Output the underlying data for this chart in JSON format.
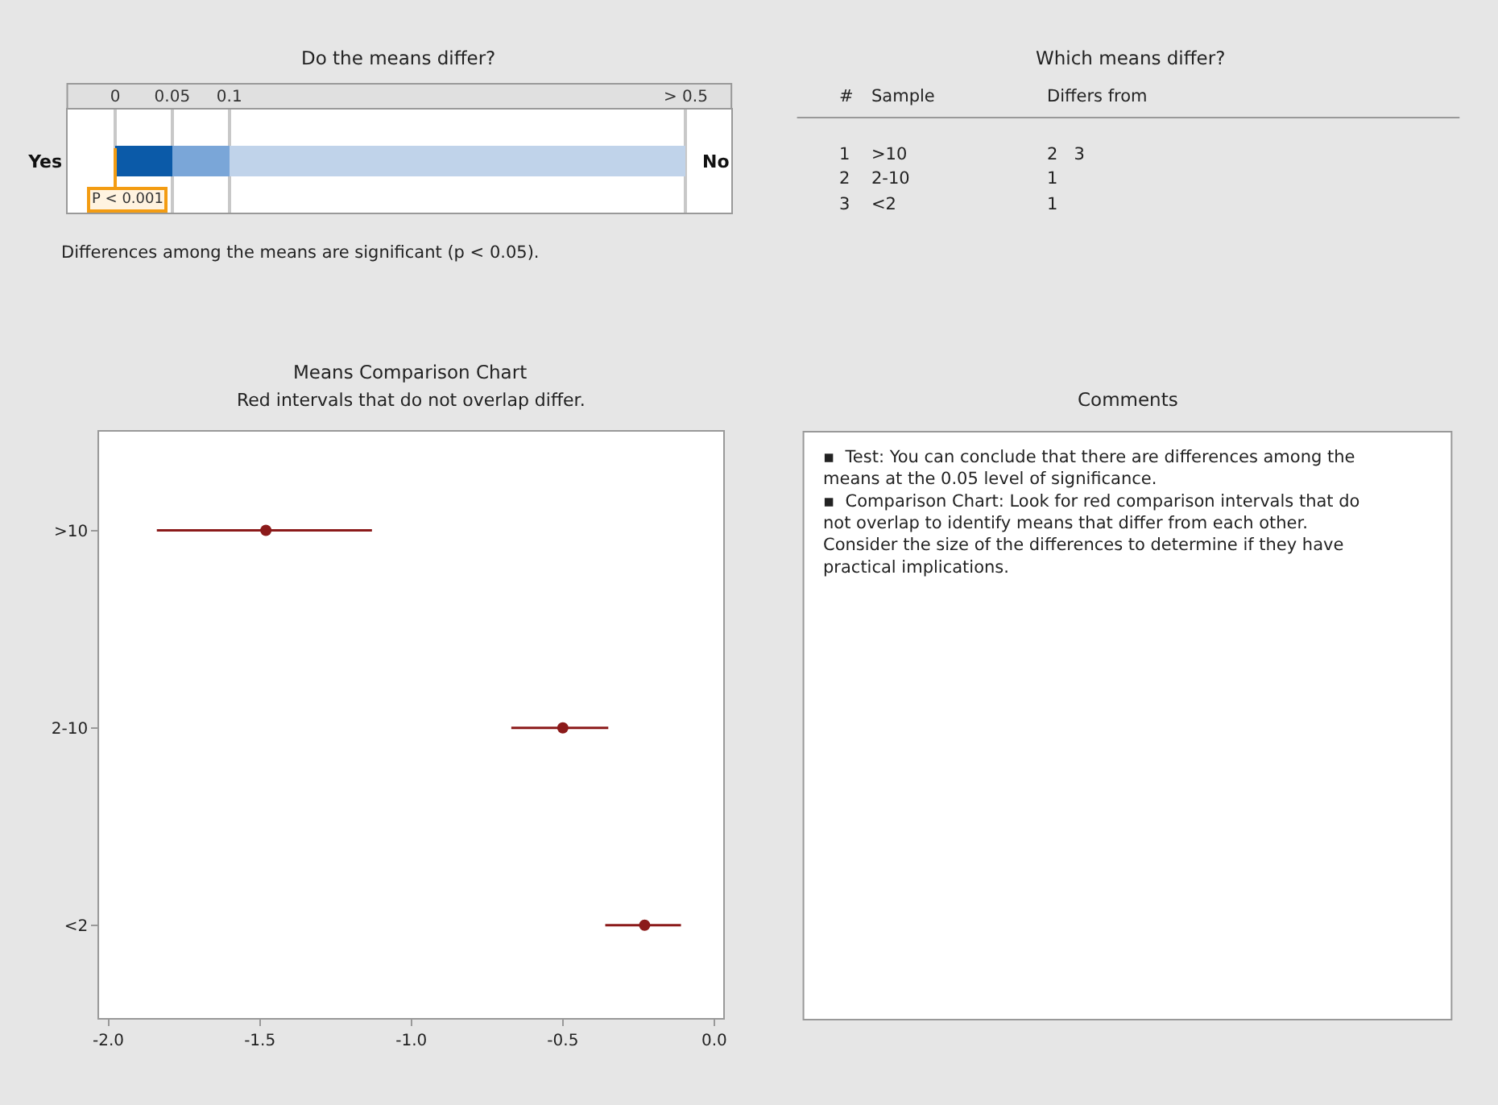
{
  "chart_data": [
    {
      "type": "bar",
      "title": "Do the means differ?",
      "orientation": "horizontal",
      "stacked": true,
      "categories": [
        "Yes"
      ],
      "series": [
        {
          "color": "#0b5aa8",
          "values": [
            0.05
          ]
        },
        {
          "color": "#7aa6d8",
          "values": [
            0.05
          ]
        },
        {
          "color": "#c0d3ea",
          "values": [
            0.4
          ]
        }
      ],
      "xlim": [
        -0.042,
        0.54
      ],
      "xticks": [
        0,
        0.05,
        0.1,
        {
          "value": 0.5,
          "label": "> 0.5"
        }
      ],
      "grid": "x",
      "ref_lines": [
        {
          "axis": "x",
          "value": 0,
          "label": "P < 0.001",
          "color": "#f39c12"
        }
      ],
      "annotations": [
        {
          "text": "No",
          "x": 0.5
        },
        "Differences among the means are significant (p < 0.05)."
      ]
    },
    {
      "type": "other",
      "title": "Which means differ?",
      "annotations": [
        "#",
        "Sample",
        "Differs from",
        "1",
        ">10",
        "2   3",
        "2",
        "2-10",
        "1",
        "3",
        "<2",
        "1"
      ]
    },
    {
      "type": "scatter",
      "title": "Means Comparison Chart",
      "subtitle": "Red intervals that do not overlap differ.",
      "orientation": "horizontal",
      "categories": [
        ">10",
        "2-10",
        "<2"
      ],
      "values": [
        -1.48,
        -0.5,
        -0.23
      ],
      "errors": [
        [
          -1.84,
          -1.13
        ],
        [
          -0.67,
          -0.35
        ],
        [
          -0.36,
          -0.11
        ]
      ],
      "color": "#8b1a1a",
      "marker": "circle",
      "grid": false,
      "xlim": [
        -2.03,
        0.03
      ],
      "xticks": [
        {
          "value": -2,
          "label": "-2.0"
        },
        -1.5,
        {
          "value": -1,
          "label": "-1.0"
        },
        -0.5,
        {
          "value": 0,
          "label": "0.0"
        }
      ]
    },
    {
      "type": "other",
      "title": "Comments",
      "annotations": [
        "▪  Test: You can conclude that there are differences among the means at the 0.05 level of significance.",
        "▪  Comparison Chart: Look for red comparison intervals that do not overlap to identify means that differ from each other. Consider the size of the differences to determine if they have practical implications."
      ]
    }
  ]
}
